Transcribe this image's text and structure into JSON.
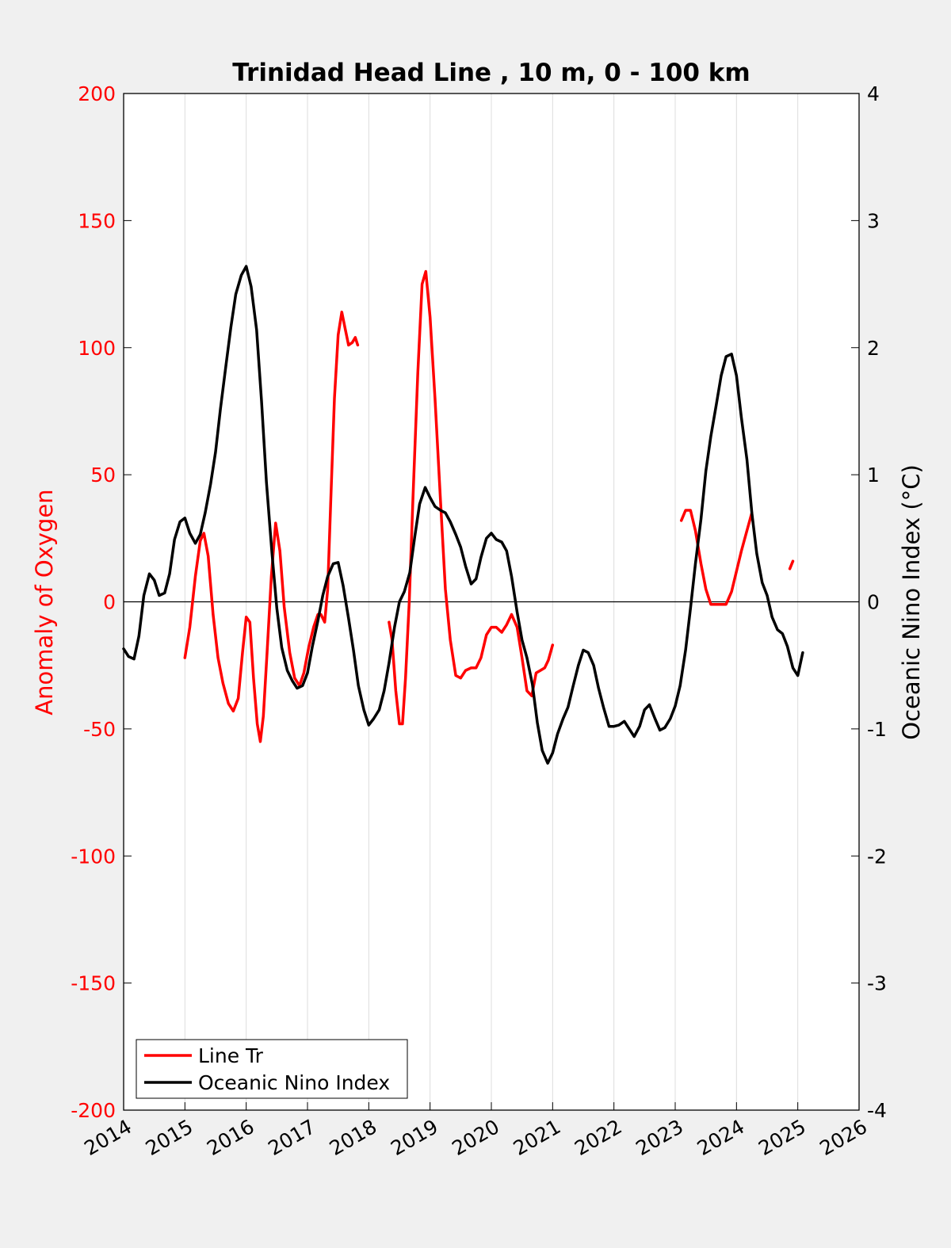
{
  "chart_data": {
    "type": "line",
    "title": "Trinidad Head Line , 10 m, 0 - 100 km",
    "xlabel": "",
    "xlim": [
      2014,
      2026
    ],
    "x_ticks": [
      "2014",
      "2015",
      "2016",
      "2017",
      "2018",
      "2019",
      "2020",
      "2021",
      "2022",
      "2023",
      "2024",
      "2025",
      "2026"
    ],
    "grid": "vertical lines at each year",
    "left_axis": {
      "label": "Anomaly of Oxygen",
      "color": "#ff0000",
      "ylim": [
        -200,
        200
      ],
      "ticks": [
        "200",
        "150",
        "100",
        "50",
        "0",
        "-50",
        "-100",
        "-150",
        "-200"
      ]
    },
    "right_axis": {
      "label": "Oceanic Nino Index (°C)",
      "color": "#000000",
      "ylim": [
        -4,
        4
      ],
      "ticks": [
        "4",
        "3",
        "2",
        "1",
        "0",
        "-1",
        "-2",
        "-3",
        "-4"
      ]
    },
    "legend": {
      "location": "bottom-left",
      "entries": [
        {
          "label": "Line Tr",
          "color": "#ff0000"
        },
        {
          "label": "Oceanic Nino Index",
          "color": "#000000"
        }
      ]
    },
    "series": [
      {
        "name": "Line Tr",
        "axis": "left",
        "color": "#ff0000",
        "segments": [
          [
            [
              2015.0,
              -22
            ],
            [
              2015.08,
              -10
            ],
            [
              2015.17,
              10
            ],
            [
              2015.25,
              24
            ],
            [
              2015.31,
              27
            ],
            [
              2015.38,
              18
            ],
            [
              2015.46,
              -5
            ],
            [
              2015.54,
              -22
            ],
            [
              2015.62,
              -32
            ],
            [
              2015.71,
              -40
            ],
            [
              2015.79,
              -43
            ],
            [
              2015.87,
              -38
            ],
            [
              2015.94,
              -20
            ],
            [
              2016.0,
              -6
            ],
            [
              2016.06,
              -8
            ],
            [
              2016.12,
              -30
            ],
            [
              2016.18,
              -48
            ],
            [
              2016.23,
              -55
            ],
            [
              2016.28,
              -45
            ],
            [
              2016.34,
              -20
            ],
            [
              2016.41,
              10
            ],
            [
              2016.48,
              31
            ],
            [
              2016.55,
              20
            ],
            [
              2016.62,
              -2
            ],
            [
              2016.71,
              -20
            ],
            [
              2016.79,
              -30
            ],
            [
              2016.87,
              -33
            ],
            [
              2016.94,
              -28
            ],
            [
              2017.02,
              -18
            ],
            [
              2017.1,
              -10
            ],
            [
              2017.17,
              -5
            ],
            [
              2017.22,
              -5
            ],
            [
              2017.28,
              -8
            ],
            [
              2017.33,
              5
            ],
            [
              2017.38,
              40
            ],
            [
              2017.44,
              80
            ],
            [
              2017.5,
              105
            ],
            [
              2017.56,
              114
            ],
            [
              2017.61,
              108
            ],
            [
              2017.67,
              101
            ],
            [
              2017.73,
              102
            ],
            [
              2017.78,
              104
            ],
            [
              2017.82,
              101
            ]
          ],
          [
            [
              2018.33,
              -8
            ],
            [
              2018.38,
              -15
            ],
            [
              2018.44,
              -35
            ],
            [
              2018.5,
              -48
            ],
            [
              2018.55,
              -48
            ],
            [
              2018.6,
              -30
            ],
            [
              2018.66,
              0
            ],
            [
              2018.72,
              40
            ],
            [
              2018.8,
              90
            ],
            [
              2018.87,
              125
            ],
            [
              2018.93,
              130
            ],
            [
              2019.0,
              112
            ],
            [
              2019.08,
              80
            ],
            [
              2019.17,
              40
            ],
            [
              2019.25,
              5
            ],
            [
              2019.33,
              -15
            ],
            [
              2019.42,
              -29
            ],
            [
              2019.5,
              -30
            ],
            [
              2019.58,
              -27
            ],
            [
              2019.67,
              -26
            ],
            [
              2019.75,
              -26
            ],
            [
              2019.83,
              -22
            ],
            [
              2019.92,
              -13
            ],
            [
              2020.0,
              -10
            ],
            [
              2020.08,
              -10
            ],
            [
              2020.17,
              -12
            ],
            [
              2020.25,
              -9
            ],
            [
              2020.33,
              -5
            ],
            [
              2020.42,
              -10
            ],
            [
              2020.5,
              -22
            ],
            [
              2020.58,
              -35
            ],
            [
              2020.66,
              -37
            ],
            [
              2020.73,
              -28
            ],
            [
              2020.8,
              -27
            ],
            [
              2020.87,
              -26
            ],
            [
              2020.93,
              -23
            ],
            [
              2021.0,
              -17
            ]
          ]
        ],
        "end_segments": [
          [
            [
              2023.1,
              32
            ],
            [
              2023.17,
              36
            ],
            [
              2023.25,
              36
            ],
            [
              2023.33,
              28
            ],
            [
              2023.42,
              15
            ],
            [
              2023.5,
              5
            ],
            [
              2023.58,
              -1
            ],
            [
              2023.67,
              -1
            ],
            [
              2023.75,
              -1
            ],
            [
              2023.83,
              -1
            ],
            [
              2023.92,
              4
            ],
            [
              2024.0,
              12
            ],
            [
              2024.08,
              20
            ],
            [
              2024.17,
              28
            ],
            [
              2024.25,
              35
            ]
          ],
          [
            [
              2024.87,
              13
            ],
            [
              2024.92,
              16
            ]
          ]
        ]
      },
      {
        "name": "Oceanic Nino Index",
        "axis": "right",
        "color": "#000000",
        "values": [
          [
            2014.0,
            -0.37
          ],
          [
            2014.08,
            -0.43
          ],
          [
            2014.17,
            -0.45
          ],
          [
            2014.25,
            -0.27
          ],
          [
            2014.33,
            0.05
          ],
          [
            2014.42,
            0.22
          ],
          [
            2014.5,
            0.17
          ],
          [
            2014.58,
            0.05
          ],
          [
            2014.67,
            0.07
          ],
          [
            2014.75,
            0.22
          ],
          [
            2014.83,
            0.49
          ],
          [
            2014.92,
            0.63
          ],
          [
            2015.0,
            0.66
          ],
          [
            2015.08,
            0.54
          ],
          [
            2015.17,
            0.46
          ],
          [
            2015.25,
            0.53
          ],
          [
            2015.33,
            0.7
          ],
          [
            2015.42,
            0.93
          ],
          [
            2015.5,
            1.18
          ],
          [
            2015.58,
            1.52
          ],
          [
            2015.67,
            1.86
          ],
          [
            2015.75,
            2.16
          ],
          [
            2015.83,
            2.42
          ],
          [
            2015.92,
            2.57
          ],
          [
            2016.0,
            2.64
          ],
          [
            2016.08,
            2.48
          ],
          [
            2016.17,
            2.14
          ],
          [
            2016.25,
            1.58
          ],
          [
            2016.33,
            0.94
          ],
          [
            2016.42,
            0.39
          ],
          [
            2016.5,
            -0.05
          ],
          [
            2016.58,
            -0.36
          ],
          [
            2016.67,
            -0.54
          ],
          [
            2016.75,
            -0.62
          ],
          [
            2016.83,
            -0.68
          ],
          [
            2016.92,
            -0.66
          ],
          [
            2017.0,
            -0.56
          ],
          [
            2017.08,
            -0.35
          ],
          [
            2017.17,
            -0.15
          ],
          [
            2017.25,
            0.05
          ],
          [
            2017.33,
            0.2
          ],
          [
            2017.42,
            0.3
          ],
          [
            2017.5,
            0.31
          ],
          [
            2017.58,
            0.13
          ],
          [
            2017.67,
            -0.13
          ],
          [
            2017.75,
            -0.38
          ],
          [
            2017.83,
            -0.66
          ],
          [
            2017.92,
            -0.85
          ],
          [
            2018.0,
            -0.97
          ],
          [
            2018.08,
            -0.92
          ],
          [
            2018.17,
            -0.85
          ],
          [
            2018.25,
            -0.7
          ],
          [
            2018.33,
            -0.48
          ],
          [
            2018.42,
            -0.2
          ],
          [
            2018.5,
            0.0
          ],
          [
            2018.58,
            0.08
          ],
          [
            2018.67,
            0.23
          ],
          [
            2018.75,
            0.51
          ],
          [
            2018.83,
            0.77
          ],
          [
            2018.92,
            0.9
          ],
          [
            2019.0,
            0.82
          ],
          [
            2019.08,
            0.75
          ],
          [
            2019.17,
            0.72
          ],
          [
            2019.25,
            0.7
          ],
          [
            2019.33,
            0.63
          ],
          [
            2019.42,
            0.53
          ],
          [
            2019.5,
            0.43
          ],
          [
            2019.58,
            0.28
          ],
          [
            2019.67,
            0.14
          ],
          [
            2019.75,
            0.18
          ],
          [
            2019.83,
            0.35
          ],
          [
            2019.92,
            0.5
          ],
          [
            2020.0,
            0.54
          ],
          [
            2020.08,
            0.49
          ],
          [
            2020.17,
            0.47
          ],
          [
            2020.25,
            0.4
          ],
          [
            2020.33,
            0.2
          ],
          [
            2020.42,
            -0.08
          ],
          [
            2020.5,
            -0.3
          ],
          [
            2020.58,
            -0.44
          ],
          [
            2020.67,
            -0.65
          ],
          [
            2020.75,
            -0.95
          ],
          [
            2020.83,
            -1.17
          ],
          [
            2020.92,
            -1.27
          ],
          [
            2021.0,
            -1.19
          ],
          [
            2021.08,
            -1.04
          ],
          [
            2021.17,
            -0.92
          ],
          [
            2021.25,
            -0.83
          ],
          [
            2021.33,
            -0.67
          ],
          [
            2021.42,
            -0.5
          ],
          [
            2021.5,
            -0.38
          ],
          [
            2021.58,
            -0.4
          ],
          [
            2021.67,
            -0.5
          ],
          [
            2021.75,
            -0.68
          ],
          [
            2021.83,
            -0.83
          ],
          [
            2021.92,
            -0.98
          ],
          [
            2022.0,
            -0.98
          ],
          [
            2022.08,
            -0.97
          ],
          [
            2022.17,
            -0.94
          ],
          [
            2022.25,
            -1.0
          ],
          [
            2022.33,
            -1.06
          ],
          [
            2022.42,
            -0.98
          ],
          [
            2022.5,
            -0.85
          ],
          [
            2022.58,
            -0.81
          ],
          [
            2022.67,
            -0.92
          ],
          [
            2022.75,
            -1.01
          ],
          [
            2022.83,
            -0.99
          ],
          [
            2022.92,
            -0.92
          ],
          [
            2023.0,
            -0.82
          ],
          [
            2023.08,
            -0.66
          ],
          [
            2023.17,
            -0.38
          ],
          [
            2023.25,
            -0.05
          ],
          [
            2023.33,
            0.3
          ],
          [
            2023.42,
            0.65
          ],
          [
            2023.5,
            1.03
          ],
          [
            2023.58,
            1.3
          ],
          [
            2023.67,
            1.55
          ],
          [
            2023.75,
            1.78
          ],
          [
            2023.83,
            1.93
          ],
          [
            2023.92,
            1.95
          ],
          [
            2024.0,
            1.78
          ],
          [
            2024.08,
            1.45
          ],
          [
            2024.17,
            1.12
          ],
          [
            2024.25,
            0.7
          ],
          [
            2024.33,
            0.38
          ],
          [
            2024.42,
            0.15
          ],
          [
            2024.5,
            0.05
          ],
          [
            2024.58,
            -0.12
          ],
          [
            2024.67,
            -0.22
          ],
          [
            2024.75,
            -0.25
          ],
          [
            2024.83,
            -0.35
          ],
          [
            2024.92,
            -0.52
          ],
          [
            2025.0,
            -0.58
          ],
          [
            2025.08,
            -0.4
          ]
        ]
      }
    ]
  }
}
